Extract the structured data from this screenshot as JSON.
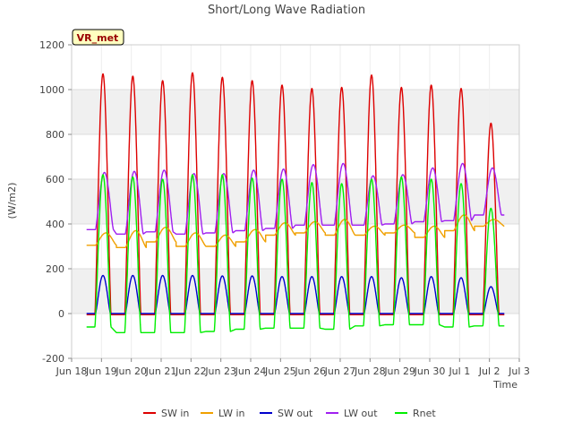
{
  "chart_data": {
    "type": "line",
    "title": "Short/Long Wave Radiation",
    "xlabel": "Time",
    "ylabel": "(W/m2)",
    "badge": "VR_met",
    "xlim": [
      0,
      15
    ],
    "ylim": [
      -200,
      1200
    ],
    "x_ticks": [
      {
        "value": 0,
        "label": "Jun 18"
      },
      {
        "value": 1,
        "label": "Jun 19"
      },
      {
        "value": 2,
        "label": "Jun 20"
      },
      {
        "value": 3,
        "label": "Jun 21"
      },
      {
        "value": 4,
        "label": "Jun 22"
      },
      {
        "value": 5,
        "label": "Jun 23"
      },
      {
        "value": 6,
        "label": "Jun 24"
      },
      {
        "value": 7,
        "label": "Jun 25"
      },
      {
        "value": 8,
        "label": "Jun 26"
      },
      {
        "value": 9,
        "label": "Jun 27"
      },
      {
        "value": 10,
        "label": "Jun 28"
      },
      {
        "value": 11,
        "label": "Jun 29"
      },
      {
        "value": 12,
        "label": "Jun 30"
      },
      {
        "value": 13,
        "label": "Jul 1"
      },
      {
        "value": 14,
        "label": "Jul 2"
      },
      {
        "value": 15,
        "label": "Jul 3"
      }
    ],
    "y_ticks": [
      -200,
      0,
      200,
      400,
      600,
      800,
      1000,
      1200
    ],
    "grid": true,
    "legend_position": "bottom",
    "series": [
      {
        "name": "SW in",
        "color": "#dd0000",
        "night": -5,
        "peak": [
          1070,
          1060,
          1040,
          1075,
          1055,
          1040,
          1020,
          1005,
          1010,
          1065,
          1010,
          1020,
          1005,
          850
        ],
        "peak_time": 0.55,
        "half_width": 0.27
      },
      {
        "name": "LW in",
        "color": "#f0a000",
        "night": [
          305,
          295,
          320,
          300,
          300,
          320,
          350,
          360,
          350,
          350,
          360,
          340,
          370,
          390
        ],
        "peak": [
          360,
          370,
          385,
          360,
          350,
          375,
          405,
          410,
          420,
          390,
          395,
          390,
          440,
          420
        ],
        "peak_time": 0.65,
        "half_width": 0.35
      },
      {
        "name": "SW out",
        "color": "#0000cc",
        "night": 0,
        "peak": [
          170,
          170,
          170,
          170,
          168,
          168,
          165,
          165,
          165,
          165,
          160,
          165,
          160,
          120
        ],
        "peak_time": 0.55,
        "half_width": 0.25
      },
      {
        "name": "LW out",
        "color": "#a020f0",
        "night": [
          375,
          355,
          365,
          355,
          360,
          370,
          380,
          395,
          395,
          395,
          400,
          410,
          415,
          440
        ],
        "peak": [
          630,
          635,
          640,
          625,
          625,
          640,
          645,
          665,
          670,
          615,
          620,
          650,
          670,
          650
        ],
        "peak_time": 0.6,
        "half_width": 0.3
      },
      {
        "name": "Rnet",
        "color": "#00ee00",
        "night": [
          -60,
          -85,
          -85,
          -85,
          -80,
          -70,
          -65,
          -65,
          -70,
          -55,
          -50,
          -50,
          -60,
          -55
        ],
        "peak": [
          620,
          610,
          600,
          620,
          620,
          605,
          600,
          585,
          580,
          600,
          610,
          600,
          580,
          470
        ],
        "peak_time": 0.55,
        "half_width": 0.27
      }
    ]
  }
}
